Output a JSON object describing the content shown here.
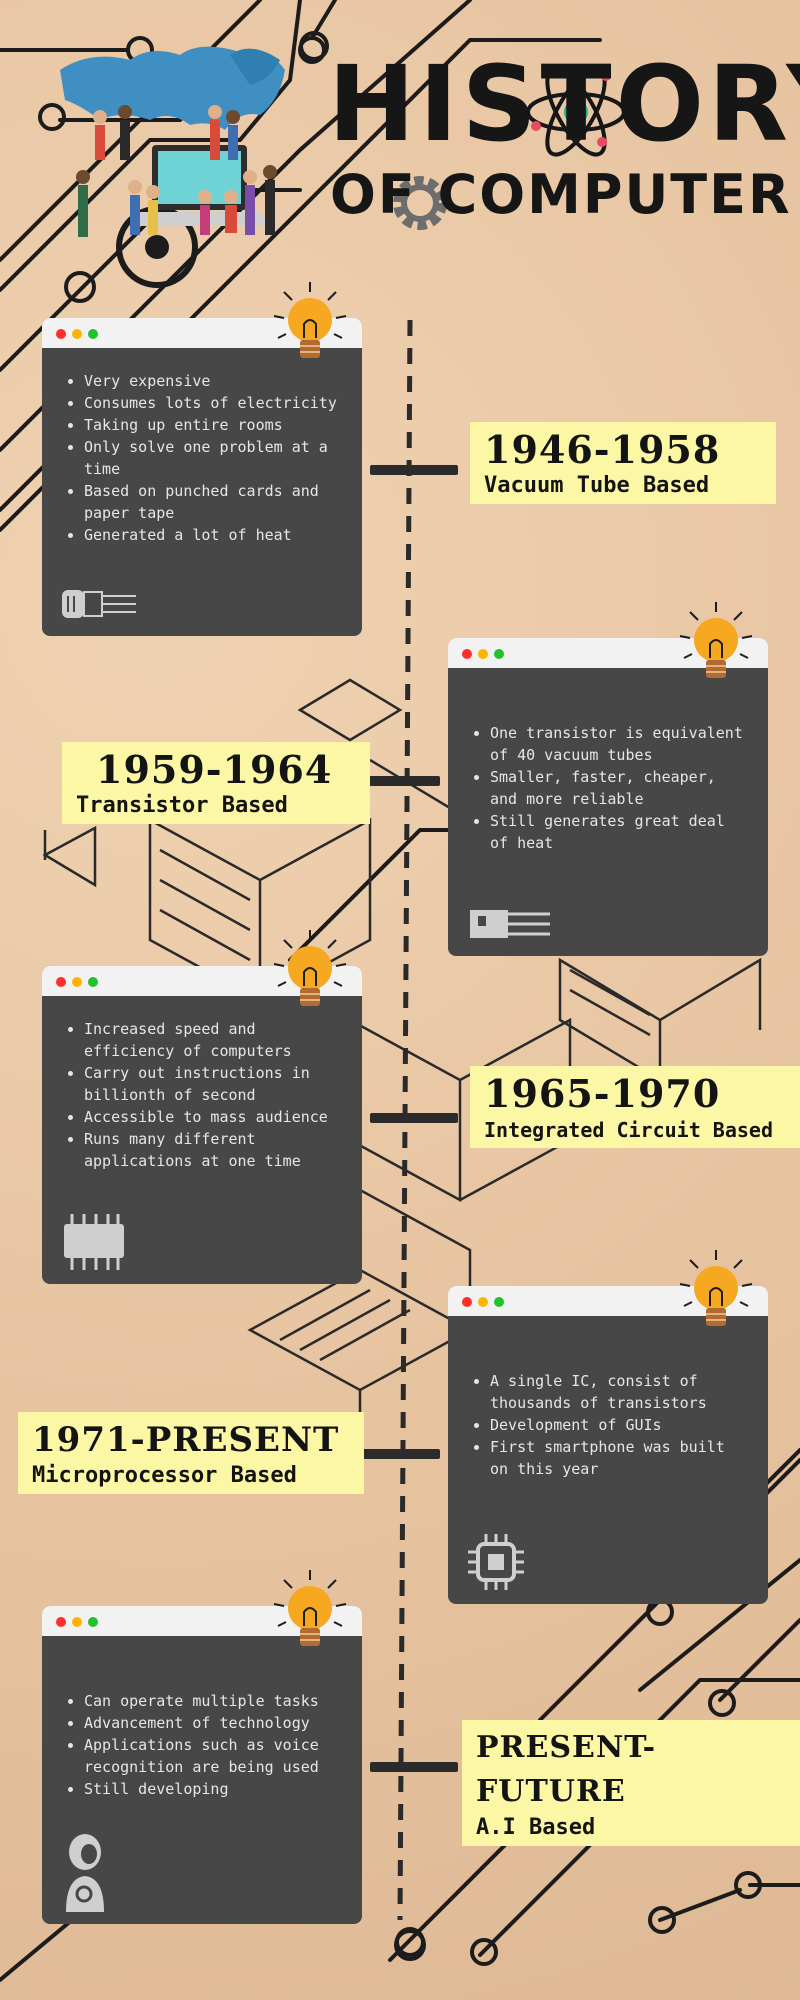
{
  "header": {
    "title": "HISTORY",
    "subtitle": "OF COMPUTER"
  },
  "eras": [
    {
      "years": "1946-1958",
      "name": "Vacuum Tube Based",
      "points": [
        "Very expensive",
        "Consumes lots of electricity",
        "Taking up entire rooms",
        "Only solve one problem at a time",
        "Based on punched cards and paper tape",
        "Generated a lot of heat"
      ],
      "icon": "vacuum-tube-icon"
    },
    {
      "years": "1959-1964",
      "name": "Transistor Based",
      "points": [
        "One transistor is equivalent of 40 vacuum tubes",
        "Smaller, faster, cheaper, and more reliable",
        "Still generates great deal of heat"
      ],
      "icon": "transistor-icon"
    },
    {
      "years": "1965-1970",
      "name": "Integrated Circuit Based",
      "points": [
        "Increased speed and efficiency of computers",
        "Carry out instructions in billionth of second",
        "Accessible to mass audience",
        "Runs many different applications at one time"
      ],
      "icon": "integrated-circuit-icon"
    },
    {
      "years": "1971-PRESENT",
      "name": "Microprocessor Based",
      "points": [
        "A single IC, consist of thousands of transistors",
        "Development of GUIs",
        "First smartphone was built on this year"
      ],
      "icon": "microprocessor-icon"
    },
    {
      "years": "PRESENT-FUTURE",
      "name": "A.I Based",
      "points": [
        "Can operate multiple tasks",
        "Advancement of technology",
        "Applications such as voice recognition are being used",
        "Still developing"
      ],
      "icon": "robot-icon"
    }
  ],
  "colors": {
    "background": "#e6c29e",
    "card": "#474747",
    "label": "#fbf7a5",
    "dot_red": "#ff2d2d",
    "dot_yellow": "#ffb400",
    "dot_green": "#22c22a",
    "bulb": "#f6a821"
  }
}
